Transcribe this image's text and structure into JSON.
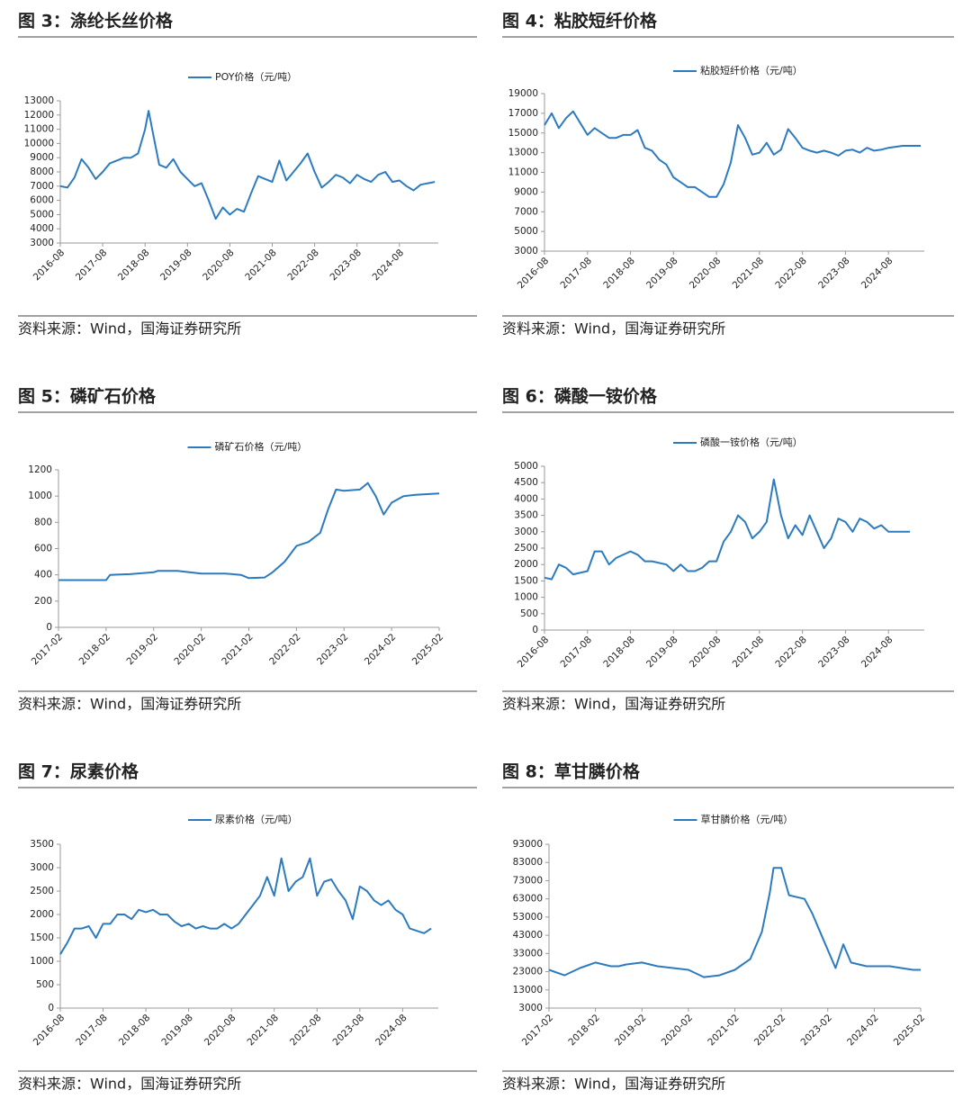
{
  "chart_data": [
    {
      "type": "line",
      "title": "图 3：涤纶长丝价格",
      "source": "资料来源：Wind，国海证券研究所",
      "x": [
        "2016-08",
        "2016-10",
        "2016-12",
        "2017-02",
        "2017-04",
        "2017-06",
        "2017-08",
        "2017-10",
        "2017-12",
        "2018-02",
        "2018-04",
        "2018-06",
        "2018-08",
        "2018-09",
        "2018-10",
        "2018-12",
        "2019-02",
        "2019-04",
        "2019-06",
        "2019-08",
        "2019-10",
        "2019-12",
        "2020-02",
        "2020-04",
        "2020-06",
        "2020-08",
        "2020-10",
        "2020-12",
        "2021-02",
        "2021-04",
        "2021-06",
        "2021-08",
        "2021-10",
        "2021-12",
        "2022-02",
        "2022-04",
        "2022-06",
        "2022-08",
        "2022-10",
        "2022-12",
        "2023-02",
        "2023-04",
        "2023-06",
        "2023-08",
        "2023-10",
        "2023-12",
        "2024-02",
        "2024-04",
        "2024-06",
        "2024-08",
        "2024-10",
        "2024-12",
        "2025-02",
        "2025-06"
      ],
      "series": [
        {
          "name": "POY价格（元/吨）",
          "color": "#2c7bbf",
          "values": [
            7000,
            6900,
            7600,
            8900,
            8300,
            7500,
            8000,
            8600,
            8800,
            9000,
            9000,
            9300,
            11000,
            12300,
            11000,
            8500,
            8300,
            8900,
            8000,
            7500,
            7000,
            7200,
            6000,
            4700,
            5500,
            5000,
            5400,
            5200,
            6500,
            7700,
            7500,
            7300,
            8800,
            7400,
            8000,
            8600,
            9300,
            8000,
            6900,
            7300,
            7800,
            7600,
            7200,
            7800,
            7500,
            7300,
            7800,
            8000,
            7300,
            7400,
            7000,
            6700,
            7100,
            7300
          ]
        }
      ],
      "xlim": [
        "2016-08",
        "2025-07"
      ],
      "xticks": [
        "2016-08",
        "2017-08",
        "2018-08",
        "2019-08",
        "2020-08",
        "2021-08",
        "2022-08",
        "2023-08",
        "2024-08"
      ],
      "ylim": [
        3000,
        13000
      ],
      "yticks": [
        3000,
        4000,
        5000,
        6000,
        7000,
        8000,
        9000,
        10000,
        11000,
        12000,
        13000
      ]
    },
    {
      "type": "line",
      "title": "图 4：粘胶短纤价格",
      "source": "资料来源：Wind，国海证券研究所",
      "x": [
        "2016-08",
        "2016-10",
        "2016-12",
        "2017-02",
        "2017-04",
        "2017-06",
        "2017-08",
        "2017-10",
        "2017-12",
        "2018-02",
        "2018-04",
        "2018-06",
        "2018-08",
        "2018-10",
        "2018-12",
        "2019-02",
        "2019-04",
        "2019-06",
        "2019-08",
        "2019-10",
        "2019-12",
        "2020-02",
        "2020-04",
        "2020-06",
        "2020-08",
        "2020-10",
        "2020-12",
        "2021-02",
        "2021-04",
        "2021-06",
        "2021-08",
        "2021-10",
        "2021-12",
        "2022-02",
        "2022-04",
        "2022-06",
        "2022-08",
        "2022-10",
        "2022-12",
        "2023-02",
        "2023-04",
        "2023-06",
        "2023-08",
        "2023-10",
        "2023-12",
        "2024-02",
        "2024-04",
        "2024-06",
        "2024-08",
        "2024-12",
        "2025-05"
      ],
      "series": [
        {
          "name": "粘胶短纤价格（元/吨）",
          "color": "#2c7bbf",
          "values": [
            15800,
            17000,
            15500,
            16500,
            17200,
            16000,
            14800,
            15500,
            15000,
            14500,
            14500,
            14800,
            14800,
            15300,
            13500,
            13200,
            12300,
            11800,
            10500,
            10000,
            9500,
            9500,
            9000,
            8500,
            8500,
            9800,
            12000,
            15800,
            14500,
            12800,
            13000,
            14000,
            12800,
            13300,
            15400,
            14500,
            13500,
            13200,
            13000,
            13200,
            13000,
            12700,
            13200,
            13300,
            13000,
            13500,
            13200,
            13300,
            13500,
            13700,
            13700
          ]
        }
      ],
      "xlim": [
        "2016-08",
        "2025-06"
      ],
      "xticks": [
        "2016-08",
        "2017-08",
        "2018-08",
        "2019-08",
        "2020-08",
        "2021-08",
        "2022-08",
        "2023-08",
        "2024-08"
      ],
      "ylim": [
        3000,
        19000
      ],
      "yticks": [
        3000,
        5000,
        7000,
        9000,
        11000,
        13000,
        15000,
        17000,
        19000
      ]
    },
    {
      "type": "line",
      "title": "图 5：磷矿石价格",
      "source": "资料来源：Wind，国海证券研究所",
      "x": [
        "2017-02",
        "2017-08",
        "2018-02",
        "2018-03",
        "2018-08",
        "2019-02",
        "2019-03",
        "2019-08",
        "2020-02",
        "2020-08",
        "2020-12",
        "2021-02",
        "2021-06",
        "2021-08",
        "2021-11",
        "2022-02",
        "2022-05",
        "2022-08",
        "2022-10",
        "2022-12",
        "2023-02",
        "2023-06",
        "2023-08",
        "2023-10",
        "2023-12",
        "2024-02",
        "2024-05",
        "2024-08",
        "2025-02"
      ],
      "series": [
        {
          "name": "磷矿石价格（元/吨）",
          "color": "#2c7bbf",
          "values": [
            360,
            360,
            360,
            400,
            405,
            420,
            430,
            430,
            410,
            410,
            400,
            375,
            380,
            420,
            500,
            620,
            650,
            720,
            900,
            1050,
            1040,
            1050,
            1100,
            1000,
            860,
            950,
            1000,
            1010,
            1020
          ]
        }
      ],
      "xlim": [
        "2017-02",
        "2025-02"
      ],
      "xticks": [
        "2017-02",
        "2018-02",
        "2019-02",
        "2020-02",
        "2021-02",
        "2022-02",
        "2023-02",
        "2024-02",
        "2025-02"
      ],
      "ylim": [
        0,
        1200
      ],
      "yticks": [
        0,
        200,
        400,
        600,
        800,
        1000,
        1200
      ]
    },
    {
      "type": "line",
      "title": "图 6：磷酸一铵价格",
      "source": "资料来源：Wind，国海证券研究所",
      "x": [
        "2016-08",
        "2016-10",
        "2016-12",
        "2017-02",
        "2017-04",
        "2017-08",
        "2017-10",
        "2017-12",
        "2018-02",
        "2018-04",
        "2018-08",
        "2018-10",
        "2018-12",
        "2019-02",
        "2019-06",
        "2019-08",
        "2019-10",
        "2019-12",
        "2020-02",
        "2020-04",
        "2020-06",
        "2020-08",
        "2020-10",
        "2020-12",
        "2021-02",
        "2021-04",
        "2021-06",
        "2021-08",
        "2021-10",
        "2021-12",
        "2022-02",
        "2022-04",
        "2022-06",
        "2022-08",
        "2022-10",
        "2022-12",
        "2023-02",
        "2023-04",
        "2023-06",
        "2023-08",
        "2023-10",
        "2023-12",
        "2024-02",
        "2024-04",
        "2024-06",
        "2024-08",
        "2025-02"
      ],
      "series": [
        {
          "name": "磷酸一铵价格（元/吨）",
          "color": "#2c7bbf",
          "values": [
            1600,
            1550,
            2000,
            1900,
            1700,
            1800,
            2400,
            2400,
            2000,
            2200,
            2400,
            2300,
            2100,
            2100,
            2000,
            1800,
            2000,
            1800,
            1800,
            1900,
            2100,
            2100,
            2700,
            3000,
            3500,
            3300,
            2800,
            3000,
            3300,
            4600,
            3500,
            2800,
            3200,
            2900,
            3500,
            3000,
            2500,
            2800,
            3400,
            3300,
            3000,
            3400,
            3300,
            3100,
            3200,
            3000,
            3000
          ]
        }
      ],
      "xlim": [
        "2016-08",
        "2025-06"
      ],
      "xticks": [
        "2016-08",
        "2017-08",
        "2018-08",
        "2019-08",
        "2020-08",
        "2021-08",
        "2022-08",
        "2023-08",
        "2024-08"
      ],
      "ylim": [
        0,
        5000
      ],
      "yticks": [
        0,
        500,
        1000,
        1500,
        2000,
        2500,
        3000,
        3500,
        4000,
        4500,
        5000
      ]
    },
    {
      "type": "line",
      "title": "图 7：尿素价格",
      "source": "资料来源：Wind，国海证券研究所",
      "x": [
        "2016-08",
        "2016-10",
        "2016-12",
        "2017-02",
        "2017-04",
        "2017-06",
        "2017-08",
        "2017-10",
        "2017-12",
        "2018-02",
        "2018-04",
        "2018-06",
        "2018-08",
        "2018-10",
        "2018-12",
        "2019-02",
        "2019-04",
        "2019-06",
        "2019-08",
        "2019-10",
        "2019-12",
        "2020-02",
        "2020-04",
        "2020-06",
        "2020-08",
        "2020-10",
        "2020-12",
        "2021-02",
        "2021-04",
        "2021-06",
        "2021-08",
        "2021-10",
        "2021-12",
        "2022-02",
        "2022-04",
        "2022-06",
        "2022-08",
        "2022-10",
        "2022-12",
        "2023-02",
        "2023-04",
        "2023-06",
        "2023-08",
        "2023-10",
        "2023-12",
        "2024-02",
        "2024-04",
        "2024-06",
        "2024-08",
        "2024-10",
        "2025-02",
        "2025-04"
      ],
      "series": [
        {
          "name": "尿素价格（元/吨）",
          "color": "#2c7bbf",
          "values": [
            1150,
            1400,
            1700,
            1700,
            1750,
            1500,
            1800,
            1800,
            2000,
            2000,
            1900,
            2100,
            2050,
            2100,
            2000,
            2000,
            1850,
            1750,
            1800,
            1700,
            1750,
            1700,
            1700,
            1800,
            1700,
            1800,
            2000,
            2200,
            2400,
            2800,
            2400,
            3200,
            2500,
            2700,
            2800,
            3200,
            2400,
            2700,
            2750,
            2500,
            2300,
            1900,
            2600,
            2500,
            2300,
            2200,
            2300,
            2100,
            2000,
            1700,
            1600,
            1700
          ]
        }
      ],
      "xlim": [
        "2016-08",
        "2025-06"
      ],
      "xticks": [
        "2016-08",
        "2017-08",
        "2018-08",
        "2019-08",
        "2020-08",
        "2021-08",
        "2022-08",
        "2023-08",
        "2024-08"
      ],
      "ylim": [
        0,
        3500
      ],
      "yticks": [
        0,
        500,
        1000,
        1500,
        2000,
        2500,
        3000,
        3500
      ]
    },
    {
      "type": "line",
      "title": "图 8：草甘膦价格",
      "source": "资料来源：Wind，国海证券研究所",
      "x": [
        "2017-02",
        "2017-06",
        "2017-10",
        "2018-02",
        "2018-06",
        "2018-08",
        "2018-10",
        "2019-02",
        "2019-06",
        "2019-10",
        "2020-02",
        "2020-06",
        "2020-10",
        "2021-02",
        "2021-06",
        "2021-09",
        "2021-11",
        "2021-12",
        "2022-02",
        "2022-04",
        "2022-08",
        "2022-10",
        "2023-01",
        "2023-04",
        "2023-06",
        "2023-08",
        "2023-12",
        "2024-06",
        "2024-12",
        "2025-02"
      ],
      "series": [
        {
          "name": "草甘膦价格（元/吨）",
          "color": "#2c7bbf",
          "values": [
            24000,
            21000,
            25000,
            28000,
            26000,
            26000,
            27000,
            28000,
            26000,
            25000,
            24000,
            20000,
            21000,
            24000,
            30000,
            45000,
            66000,
            80000,
            80000,
            65000,
            63000,
            55000,
            40000,
            25000,
            38000,
            28000,
            26000,
            26000,
            24000,
            24000
          ]
        }
      ],
      "xlim": [
        "2017-02",
        "2025-02"
      ],
      "xticks": [
        "2017-02",
        "2018-02",
        "2019-02",
        "2020-02",
        "2021-02",
        "2022-02",
        "2023-02",
        "2024-02",
        "2025-02"
      ],
      "ylim": [
        3000,
        93000
      ],
      "yticks": [
        3000,
        13000,
        23000,
        33000,
        43000,
        53000,
        63000,
        73000,
        83000,
        93000
      ]
    }
  ]
}
